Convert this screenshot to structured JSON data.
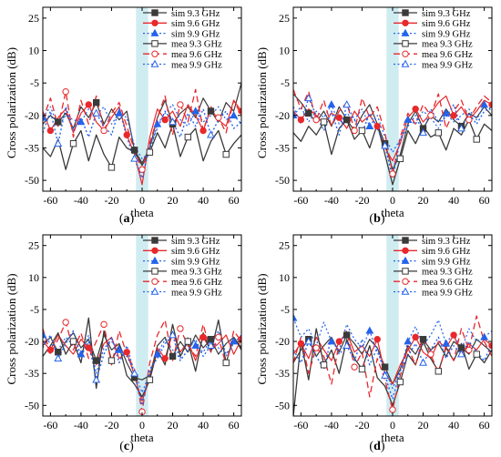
{
  "colors": {
    "sim_93": "#3a3a3a",
    "sim_96": "#e8282b",
    "sim_99": "#2563eb",
    "mea_93": "#3a3a3a",
    "mea_96": "#e8282b",
    "mea_99": "#2563eb",
    "highlight": "#bfe6ec"
  },
  "chart_data": [
    {
      "type": "line",
      "panel_label": "(a)",
      "xlabel": "theta",
      "ylabel": "Cross polarization (dB)",
      "xlim": [
        -65,
        65
      ],
      "ylim": [
        -55,
        30
      ],
      "xticks": [
        -60,
        -40,
        -20,
        0,
        20,
        40,
        60
      ],
      "yticks": [
        25,
        10,
        -5,
        -20,
        -35,
        -50
      ],
      "ytick_labels": [
        "25",
        "10",
        "-5",
        "-20",
        "-35",
        "-50"
      ],
      "highlight_band": [
        -4,
        4
      ],
      "legend_position": "top-right",
      "x": [
        -65,
        -60,
        -55,
        -50,
        -45,
        -40,
        -35,
        -30,
        -25,
        -20,
        -15,
        -10,
        -5,
        0,
        5,
        10,
        15,
        20,
        25,
        30,
        35,
        40,
        45,
        50,
        55,
        60,
        65
      ],
      "series": [
        {
          "name": "sim 9.3 GHz",
          "marker": "square",
          "values": [
            -24,
            -20,
            -23,
            -19,
            -26,
            -16,
            -21,
            -14,
            -24,
            -17,
            -22,
            -18,
            -36,
            -42,
            -35,
            -21,
            -13,
            -24,
            -19,
            -16,
            -21,
            -12,
            -18,
            -23,
            -14,
            -18,
            -5
          ]
        },
        {
          "name": "sim 9.6 GHz",
          "marker": "circle",
          "values": [
            -18,
            -27,
            -21,
            -17,
            -28,
            -19,
            -15,
            -23,
            -27,
            -21,
            -16,
            -29,
            -38,
            -52,
            -30,
            -17,
            -22,
            -18,
            -25,
            -15,
            -20,
            -27,
            -17,
            -22,
            -25,
            -13,
            -18
          ]
        },
        {
          "name": "sim 9.9 GHz",
          "marker": "triangle",
          "values": [
            -21,
            -16,
            -25,
            -20,
            -22,
            -23,
            -17,
            -20,
            -16,
            -24,
            -19,
            -21,
            -34,
            -40,
            -37,
            -24,
            -19,
            -15,
            -22,
            -25,
            -18,
            -23,
            -20,
            -16,
            -22,
            -20,
            -24
          ]
        },
        {
          "name": "mea 9.3 GHz",
          "marker": "open-square",
          "values": [
            -35,
            -39,
            -31,
            -45,
            -33,
            -27,
            -41,
            -29,
            -38,
            -44,
            -30,
            -35,
            -37,
            -43,
            -37,
            -28,
            -35,
            -24,
            -39,
            -30,
            -26,
            -41,
            -32,
            -27,
            -38,
            -33,
            -29
          ]
        },
        {
          "name": "mea 9.6 GHz",
          "marker": "open-circle",
          "values": [
            -22,
            -12,
            -25,
            -9,
            -30,
            -13,
            -24,
            -11,
            -27,
            -19,
            -14,
            -25,
            -36,
            -45,
            -33,
            -21,
            -11,
            -29,
            -15,
            -23,
            -8,
            -27,
            -16,
            -21,
            -28,
            -13,
            -20
          ]
        },
        {
          "name": "mea 9.9 GHz",
          "marker": "open-triangle",
          "values": [
            -28,
            -18,
            -33,
            -16,
            -27,
            -21,
            -30,
            -19,
            -25,
            -29,
            -17,
            -30,
            -40,
            -49,
            -34,
            -26,
            -18,
            -23,
            -30,
            -19,
            -25,
            -17,
            -29,
            -22,
            -18,
            -26,
            -23
          ]
        }
      ]
    },
    {
      "type": "line",
      "panel_label": "(b)",
      "xlabel": "theta",
      "ylabel": "Cross polarization (dB)",
      "xlim": [
        -65,
        65
      ],
      "ylim": [
        -55,
        30
      ],
      "xticks": [
        -60,
        -40,
        -20,
        0,
        20,
        40,
        60
      ],
      "yticks": [
        25,
        10,
        -5,
        -20,
        -35,
        -50
      ],
      "ytick_labels": [
        "25",
        "10",
        "-5",
        "-20",
        "-35",
        "-50"
      ],
      "highlight_band": [
        -4,
        4
      ],
      "legend_position": "top-right",
      "x": [
        -65,
        -60,
        -55,
        -50,
        -45,
        -40,
        -35,
        -30,
        -25,
        -20,
        -15,
        -10,
        -5,
        0,
        5,
        10,
        15,
        20,
        25,
        30,
        35,
        40,
        45,
        50,
        55,
        60,
        65
      ],
      "series": [
        {
          "name": "sim 9.3 GHz",
          "marker": "square",
          "values": [
            -10,
            -14,
            -19,
            -23,
            -18,
            -25,
            -16,
            -22,
            -27,
            -20,
            -15,
            -24,
            -33,
            -45,
            -38,
            -24,
            -18,
            -26,
            -20,
            -23,
            -17,
            -22,
            -25,
            -19,
            -21,
            -16,
            -20
          ]
        },
        {
          "name": "sim 9.6 GHz",
          "marker": "circle",
          "values": [
            -18,
            -22,
            -17,
            -20,
            -24,
            -19,
            -21,
            -26,
            -18,
            -23,
            -20,
            -25,
            -35,
            -41,
            -33,
            -21,
            -17,
            -23,
            -19,
            -14,
            -11,
            -20,
            -16,
            -22,
            -18,
            -13,
            -15
          ]
        },
        {
          "name": "sim 9.9 GHz",
          "marker": "triangle",
          "values": [
            -20,
            -16,
            -23,
            -18,
            -21,
            -15,
            -24,
            -19,
            -22,
            -17,
            -25,
            -20,
            -30,
            -37,
            -31,
            -22,
            -24,
            -18,
            -21,
            -26,
            -19,
            -23,
            -20,
            -17,
            -22,
            -15,
            -18
          ]
        },
        {
          "name": "mea 9.3 GHz",
          "marker": "open-square",
          "values": [
            -28,
            -32,
            -25,
            -29,
            -23,
            -38,
            -26,
            -22,
            -31,
            -27,
            -35,
            -24,
            -38,
            -52,
            -40,
            -27,
            -33,
            -25,
            -30,
            -28,
            -36,
            -26,
            -29,
            -22,
            -31,
            -24,
            -27
          ]
        },
        {
          "name": "mea 9.6 GHz",
          "marker": "open-circle",
          "values": [
            -8,
            -17,
            -9,
            -22,
            -13,
            -25,
            -18,
            -14,
            -27,
            -12,
            -21,
            -16,
            -28,
            -47,
            -30,
            -19,
            -24,
            -15,
            -20,
            -10,
            -26,
            -18,
            -13,
            -22,
            -16,
            -11,
            -14
          ]
        },
        {
          "name": "mea 9.9 GHz",
          "marker": "open-triangle",
          "values": [
            -16,
            -24,
            -12,
            -20,
            -27,
            -18,
            -29,
            -15,
            -22,
            -28,
            -19,
            -26,
            -34,
            -49,
            -31,
            -25,
            -20,
            -28,
            -17,
            -23,
            -21,
            -15,
            -26,
            -19,
            -24,
            -18,
            -16
          ]
        }
      ]
    },
    {
      "type": "line",
      "panel_label": "(c)",
      "xlabel": "theta",
      "ylabel": "Cross polarization (dB)",
      "xlim": [
        -65,
        65
      ],
      "ylim": [
        -55,
        30
      ],
      "xticks": [
        -60,
        -40,
        -20,
        0,
        20,
        40,
        60
      ],
      "yticks": [
        25,
        10,
        -5,
        -20,
        -35,
        -50
      ],
      "ytick_labels": [
        "25",
        "10",
        "-5",
        "-20",
        "-35",
        "-50"
      ],
      "highlight_band": [
        -4,
        4
      ],
      "legend_position": "top-right",
      "x": [
        -65,
        -60,
        -55,
        -50,
        -45,
        -40,
        -35,
        -30,
        -25,
        -20,
        -15,
        -10,
        -5,
        0,
        5,
        10,
        15,
        20,
        25,
        30,
        35,
        40,
        45,
        50,
        55,
        60,
        65
      ],
      "series": [
        {
          "name": "sim 9.3 GHz",
          "marker": "square",
          "values": [
            -22,
            -18,
            -25,
            -20,
            -16,
            -23,
            -19,
            -29,
            -17,
            -24,
            -21,
            -30,
            -37,
            -38,
            -36,
            -22,
            -18,
            -27,
            -20,
            -25,
            -17,
            -23,
            -19,
            -26,
            -21,
            -18,
            -24
          ]
        },
        {
          "name": "sim 9.6 GHz",
          "marker": "circle",
          "values": [
            -20,
            -24,
            -17,
            -22,
            -26,
            -19,
            -23,
            -31,
            -21,
            -18,
            -28,
            -25,
            -36,
            -48,
            -37,
            -23,
            -28,
            -16,
            -25,
            -20,
            -29,
            -18,
            -24,
            -21,
            -17,
            -26,
            -19
          ]
        },
        {
          "name": "sim 9.9 GHz",
          "marker": "triangle",
          "values": [
            -17,
            -21,
            -24,
            -18,
            -22,
            -26,
            -17,
            -35,
            -23,
            -20,
            -24,
            -27,
            -34,
            -44,
            -35,
            -26,
            -19,
            -24,
            -28,
            -18,
            -22,
            -25,
            -19,
            -23,
            -27,
            -20,
            -22
          ]
        },
        {
          "name": "mea 9.3 GHz",
          "marker": "open-square",
          "values": [
            -27,
            -22,
            -16,
            -26,
            -20,
            -30,
            -9,
            -42,
            -15,
            -29,
            -22,
            -36,
            -40,
            -46,
            -38,
            -24,
            -31,
            -12,
            -27,
            -20,
            -34,
            -16,
            -25,
            -10,
            -30,
            -18,
            -23
          ]
        },
        {
          "name": "mea 9.6 GHz",
          "marker": "open-circle",
          "values": [
            -14,
            -26,
            -19,
            -11,
            -24,
            -16,
            -28,
            -20,
            -12,
            -31,
            -15,
            -26,
            -33,
            -53,
            -30,
            -17,
            -10,
            -29,
            -14,
            -22,
            -27,
            -12,
            -25,
            -18,
            -31,
            -15,
            -20
          ]
        },
        {
          "name": "mea 9.9 GHz",
          "marker": "open-triangle",
          "values": [
            -23,
            -17,
            -28,
            -21,
            -15,
            -27,
            -20,
            -38,
            -26,
            -18,
            -30,
            -22,
            -35,
            -50,
            -33,
            -28,
            -21,
            -17,
            -29,
            -24,
            -19,
            -27,
            -22,
            -15,
            -26,
            -21,
            -17
          ]
        }
      ]
    },
    {
      "type": "line",
      "panel_label": "(d)",
      "xlabel": "theta",
      "ylabel": "Cross polarization (dB)",
      "xlim": [
        -65,
        65
      ],
      "ylim": [
        -55,
        30
      ],
      "xticks": [
        -60,
        -40,
        -20,
        0,
        20,
        40,
        60
      ],
      "yticks": [
        25,
        10,
        -5,
        -20,
        -35,
        -50
      ],
      "ytick_labels": [
        "25",
        "10",
        "-5",
        "-20",
        "-35",
        "-50"
      ],
      "highlight_band": [
        -4,
        4
      ],
      "legend_position": "top-right",
      "x": [
        -65,
        -60,
        -55,
        -50,
        -45,
        -40,
        -35,
        -30,
        -25,
        -20,
        -15,
        -10,
        -5,
        0,
        5,
        10,
        15,
        20,
        25,
        30,
        35,
        40,
        45,
        50,
        55,
        60,
        65
      ],
      "series": [
        {
          "name": "sim 9.3 GHz",
          "marker": "square",
          "values": [
            -30,
            -24,
            -19,
            -27,
            -22,
            -18,
            -25,
            -17,
            -21,
            -26,
            -19,
            -23,
            -32,
            -40,
            -33,
            -22,
            -26,
            -19,
            -24,
            -21,
            -27,
            -20,
            -23,
            -26,
            -19,
            -22,
            -25
          ]
        },
        {
          "name": "sim 9.6 GHz",
          "marker": "circle",
          "values": [
            -26,
            -21,
            -28,
            -18,
            -24,
            -29,
            -20,
            -16,
            -25,
            -22,
            -27,
            -19,
            -35,
            -40,
            -31,
            -24,
            -18,
            -25,
            -28,
            -20,
            -23,
            -17,
            -26,
            -21,
            -24,
            -19,
            -22
          ]
        },
        {
          "name": "sim 9.9 GHz",
          "marker": "triangle",
          "values": [
            -9,
            -18,
            -14,
            -22,
            -11,
            -20,
            -24,
            -12,
            -19,
            -23,
            -15,
            -25,
            -33,
            -42,
            -34,
            -20,
            -13,
            -22,
            -17,
            -10,
            -21,
            -16,
            -24,
            -14,
            -20,
            -18,
            -15
          ]
        },
        {
          "name": "mea 9.3 GHz",
          "marker": "open-square",
          "values": [
            -55,
            -20,
            -38,
            -14,
            -31,
            -24,
            -35,
            -19,
            -28,
            -33,
            -22,
            -37,
            -41,
            -50,
            -39,
            -26,
            -31,
            -20,
            -28,
            -34,
            -23,
            -29,
            -21,
            -33,
            -26,
            -30,
            -24
          ]
        },
        {
          "name": "mea 9.6 GHz",
          "marker": "open-circle",
          "values": [
            -30,
            -18,
            -35,
            -23,
            -27,
            -40,
            -21,
            -15,
            -32,
            -25,
            -46,
            -28,
            -38,
            -52,
            -36,
            -23,
            -31,
            -18,
            -26,
            -35,
            -22,
            -29,
            -14,
            -24,
            -8,
            -20,
            -27
          ]
        },
        {
          "name": "mea 9.9 GHz",
          "marker": "open-triangle",
          "values": [
            -24,
            -30,
            -20,
            -27,
            -33,
            -18,
            -26,
            -22,
            -29,
            -19,
            -31,
            -23,
            -36,
            -47,
            -34,
            -27,
            -21,
            -30,
            -24,
            -18,
            -28,
            -22,
            -26,
            -20,
            -25,
            -29,
            -21
          ]
        }
      ]
    }
  ]
}
